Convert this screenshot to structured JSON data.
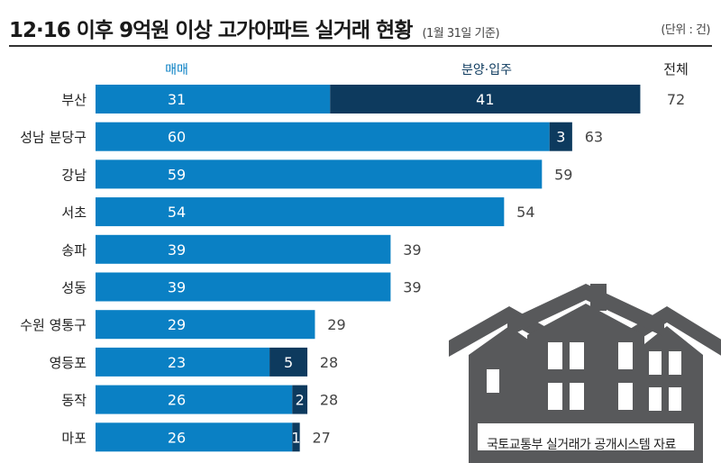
{
  "header": {
    "title": "12·16 이후 9억원 이상 고가아파트 실거래 현황",
    "subtitle": "(1월 31일 기준)",
    "unit": "(단위 : 건)"
  },
  "source": "국토교통부 실거래가 공개시스템 자료",
  "colors": {
    "sale": "#0a80c4",
    "presale": "#0d3a5e",
    "total_text": "#444444",
    "label_text": "#222222",
    "house": "#58595b"
  },
  "illustration": {
    "name": "houses-illustration"
  },
  "chart_data": {
    "type": "bar",
    "orientation": "horizontal",
    "stacked": true,
    "categories": [
      "부산",
      "성남 분당구",
      "강남",
      "서초",
      "송파",
      "성동",
      "수원 영통구",
      "영등포",
      "동작",
      "마포"
    ],
    "series": [
      {
        "name": "매매",
        "values": [
          31,
          60,
          59,
          54,
          39,
          39,
          29,
          23,
          26,
          26
        ]
      },
      {
        "name": "분양·입주",
        "values": [
          41,
          3,
          0,
          0,
          0,
          0,
          0,
          5,
          2,
          1
        ]
      }
    ],
    "totals_label": "전체",
    "totals": [
      72,
      63,
      59,
      54,
      39,
      39,
      29,
      28,
      28,
      27
    ],
    "xlim": [
      0,
      72
    ],
    "grid": false,
    "legend": "top"
  }
}
